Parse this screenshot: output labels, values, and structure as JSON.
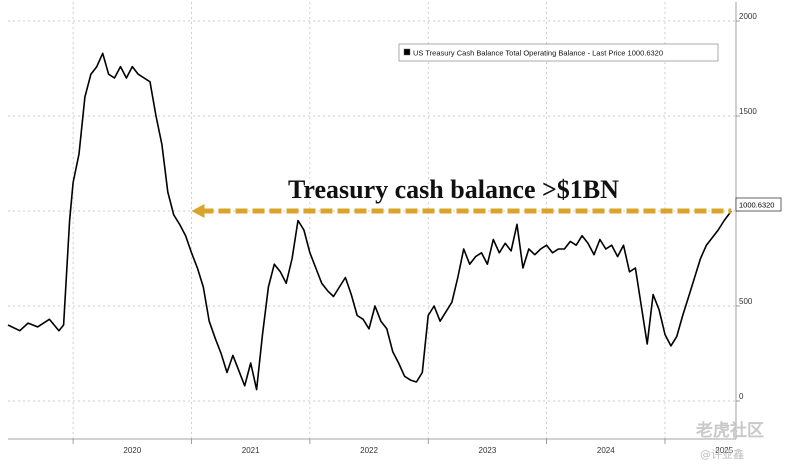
{
  "chart_data": {
    "type": "line",
    "title": "",
    "legend_label": "US Treasury Cash Balance Total Operating Balance - Last Price 1000.6320",
    "legend_placement": "top-right",
    "last_price_label": "1000.6320",
    "annotation": "Treasury cash balance >$1BN",
    "annotation_color": "#d9a42a",
    "line_color": "#000000",
    "grid": true,
    "grid_style": "dashed",
    "y_axis_side": "right",
    "ylim": [
      -200,
      2100
    ],
    "yticks": [
      0,
      500,
      1000,
      1500,
      2000
    ],
    "ytick_labels": [
      "0",
      "500",
      "1000",
      "1500",
      "2000"
    ],
    "xlim": [
      2019.45,
      2025.6
    ],
    "xticks": [
      2020,
      2021,
      2022,
      2023,
      2024,
      2025
    ],
    "xtick_labels": [
      "2020",
      "2021",
      "2022",
      "2023",
      "2024",
      "2025"
    ],
    "threshold_value": 1000,
    "x": [
      2019.45,
      2019.55,
      2019.62,
      2019.7,
      2019.8,
      2019.88,
      2019.92,
      2019.97,
      2020.0,
      2020.05,
      2020.1,
      2020.15,
      2020.2,
      2020.25,
      2020.3,
      2020.35,
      2020.4,
      2020.45,
      2020.5,
      2020.55,
      2020.6,
      2020.65,
      2020.7,
      2020.75,
      2020.8,
      2020.85,
      2020.9,
      2020.95,
      2021.0,
      2021.05,
      2021.1,
      2021.15,
      2021.2,
      2021.25,
      2021.3,
      2021.35,
      2021.4,
      2021.45,
      2021.5,
      2021.55,
      2021.6,
      2021.65,
      2021.7,
      2021.75,
      2021.8,
      2021.85,
      2021.9,
      2021.95,
      2022.0,
      2022.05,
      2022.1,
      2022.15,
      2022.2,
      2022.25,
      2022.3,
      2022.35,
      2022.4,
      2022.45,
      2022.5,
      2022.55,
      2022.6,
      2022.65,
      2022.7,
      2022.75,
      2022.8,
      2022.85,
      2022.9,
      2022.95,
      2023.0,
      2023.05,
      2023.1,
      2023.15,
      2023.2,
      2023.25,
      2023.3,
      2023.35,
      2023.4,
      2023.45,
      2023.5,
      2023.55,
      2023.6,
      2023.65,
      2023.7,
      2023.75,
      2023.8,
      2023.85,
      2023.9,
      2023.95,
      2024.0,
      2024.05,
      2024.1,
      2024.15,
      2024.2,
      2024.25,
      2024.3,
      2024.35,
      2024.4,
      2024.45,
      2024.5,
      2024.55,
      2024.6,
      2024.65,
      2024.7,
      2024.75,
      2024.8,
      2024.85,
      2024.9,
      2024.95,
      2025.0,
      2025.05,
      2025.1,
      2025.15,
      2025.2,
      2025.25,
      2025.3,
      2025.35,
      2025.4,
      2025.45,
      2025.5,
      2025.56
    ],
    "y": [
      400,
      370,
      410,
      390,
      430,
      370,
      400,
      950,
      1150,
      1300,
      1600,
      1720,
      1760,
      1830,
      1720,
      1700,
      1760,
      1700,
      1760,
      1720,
      1700,
      1680,
      1500,
      1350,
      1100,
      980,
      930,
      870,
      780,
      700,
      600,
      420,
      330,
      250,
      150,
      240,
      160,
      80,
      200,
      60,
      350,
      600,
      720,
      680,
      620,
      750,
      950,
      900,
      780,
      700,
      620,
      580,
      550,
      600,
      650,
      560,
      450,
      430,
      380,
      500,
      420,
      380,
      260,
      200,
      130,
      110,
      100,
      150,
      450,
      500,
      420,
      470,
      520,
      650,
      800,
      720,
      760,
      780,
      720,
      850,
      780,
      830,
      790,
      930,
      700,
      800,
      770,
      800,
      820,
      780,
      800,
      800,
      840,
      820,
      870,
      830,
      770,
      850,
      800,
      820,
      760,
      820,
      680,
      700,
      500,
      300,
      560,
      480,
      350,
      290,
      340,
      450,
      550,
      650,
      750,
      820,
      860,
      900,
      950,
      1000
    ]
  },
  "watermark": {
    "line1": "老虎社区",
    "line2": "@许亚鑫"
  }
}
